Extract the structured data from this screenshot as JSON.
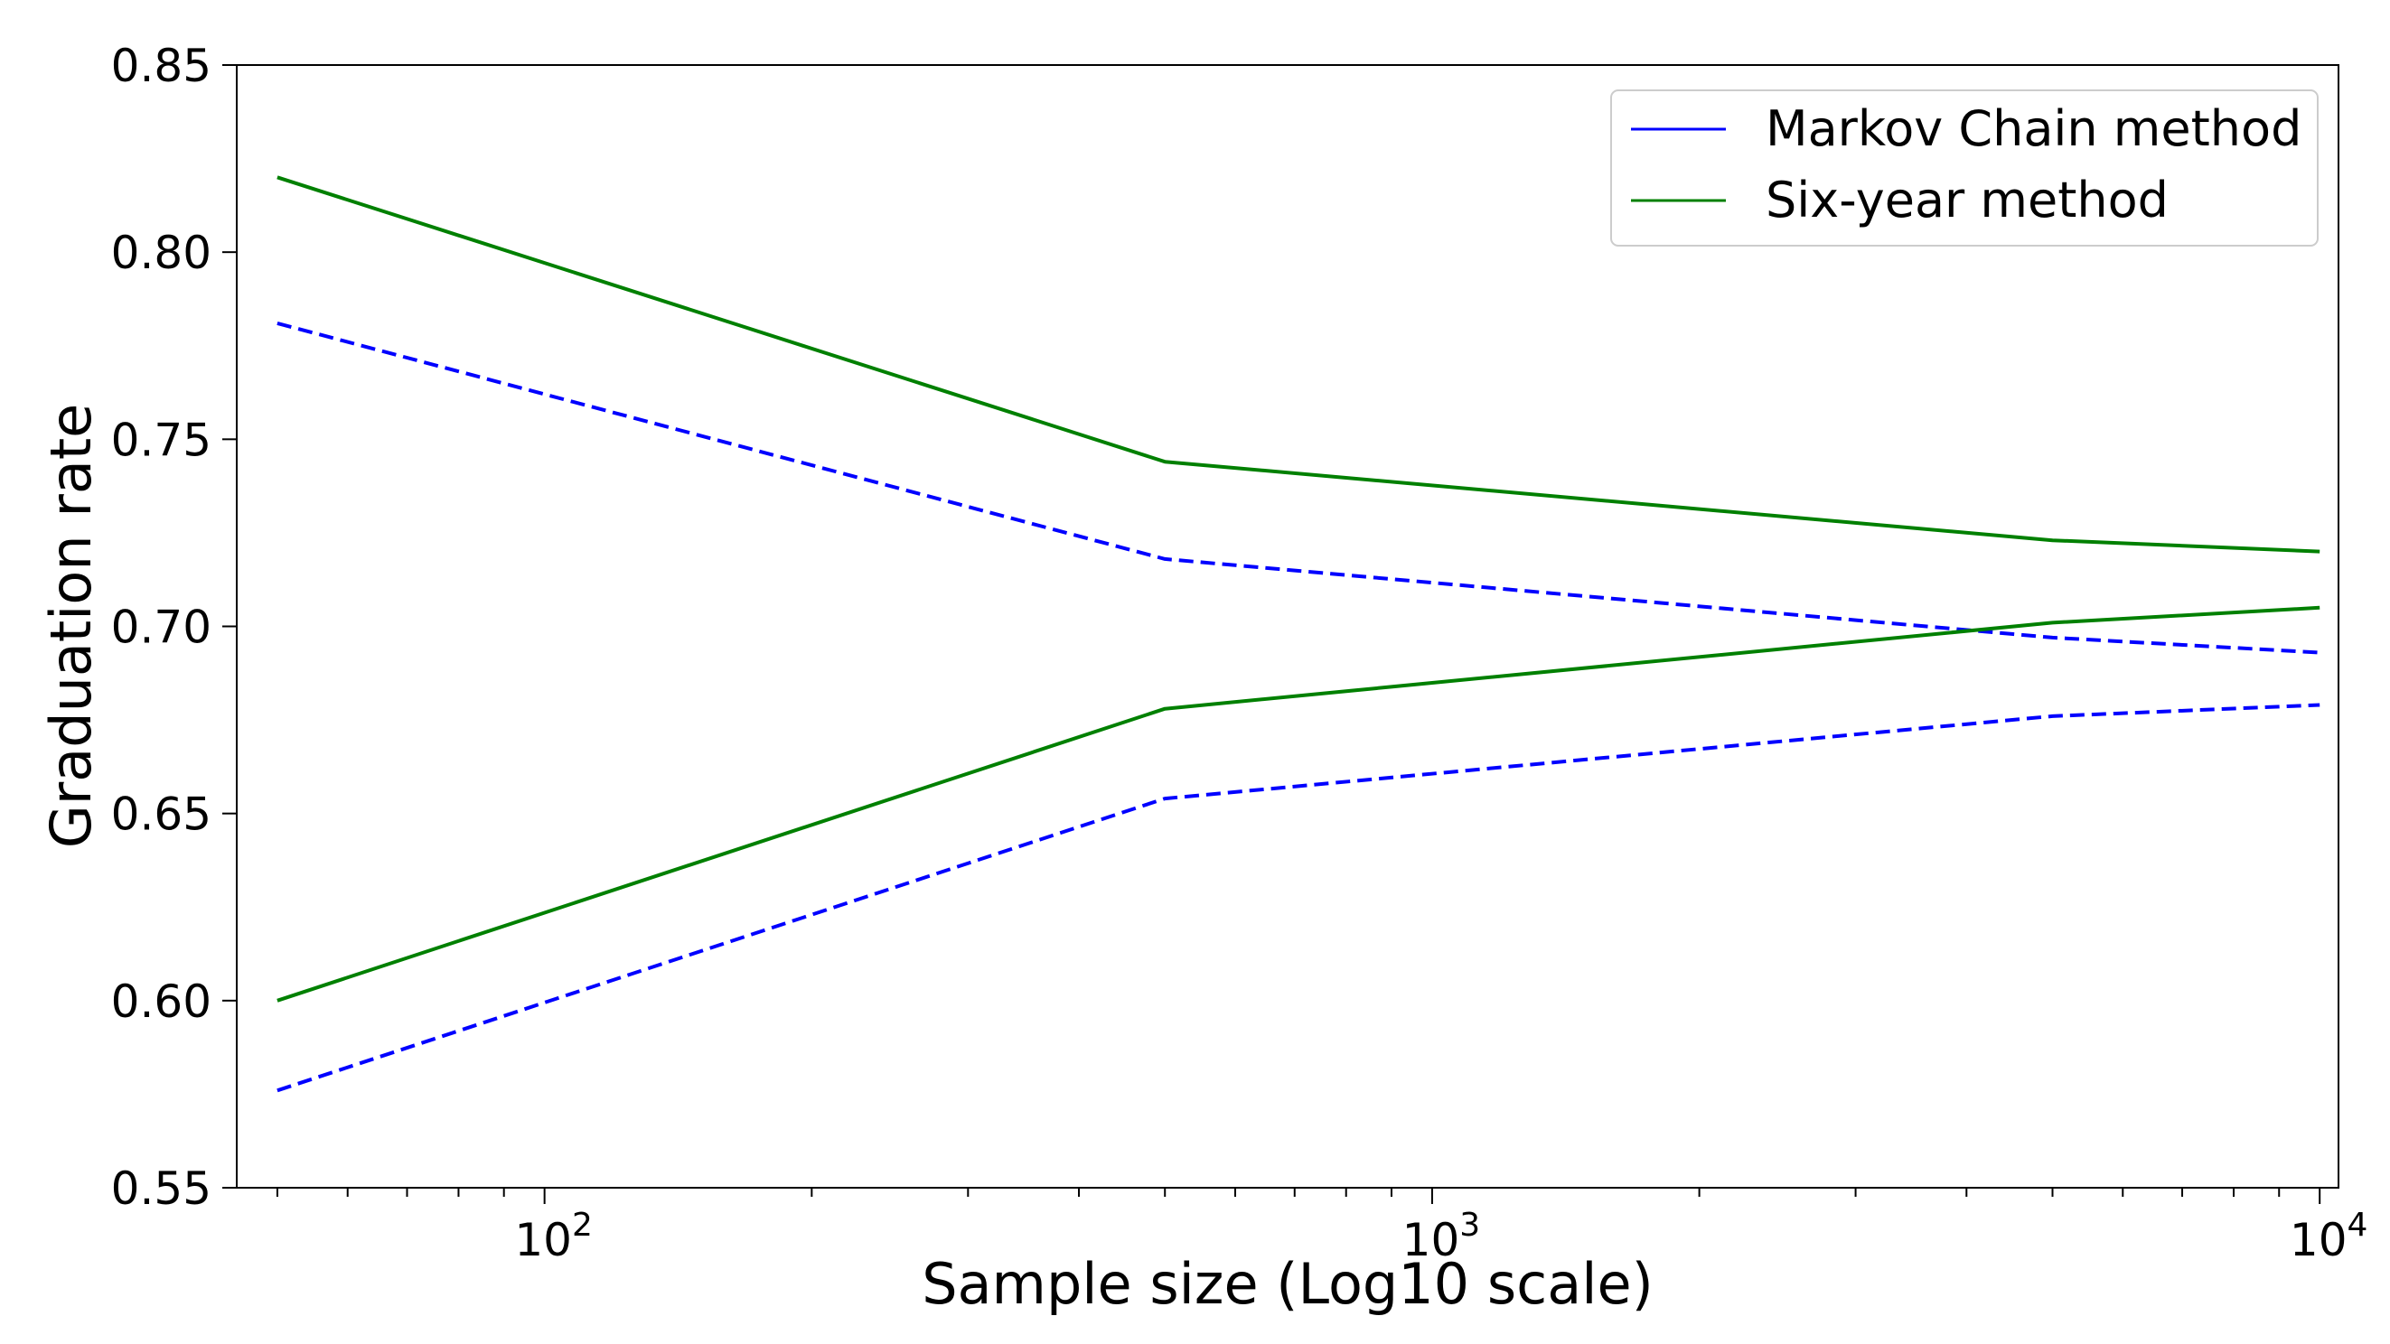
{
  "chart_data": {
    "type": "line",
    "xscale": "log",
    "xlabel": "Sample size (Log10 scale)",
    "ylabel": "Graduation rate",
    "xlim": [
      45,
      10500
    ],
    "ylim": [
      0.55,
      0.85
    ],
    "yticks": [
      "0.55",
      "0.60",
      "0.65",
      "0.70",
      "0.75",
      "0.80",
      "0.85"
    ],
    "xticks": [
      {
        "value": 100,
        "base": "10",
        "exp": "2"
      },
      {
        "value": 1000,
        "base": "10",
        "exp": "3"
      },
      {
        "value": 10000,
        "base": "10",
        "exp": "4"
      }
    ],
    "x": [
      50,
      500,
      5000,
      10000
    ],
    "series": [
      {
        "name": "Markov Chain method upper",
        "legend": "Markov Chain method",
        "color": "#0000ff",
        "style": "dashed",
        "values": [
          0.781,
          0.718,
          0.697,
          0.693
        ]
      },
      {
        "name": "Markov Chain method lower",
        "legend": "",
        "color": "#0000ff",
        "style": "dashed",
        "values": [
          0.576,
          0.654,
          0.676,
          0.679
        ]
      },
      {
        "name": "Six-year method upper",
        "legend": "Six-year method",
        "color": "#008000",
        "style": "solid",
        "values": [
          0.82,
          0.744,
          0.723,
          0.72
        ]
      },
      {
        "name": "Six-year method lower",
        "legend": "",
        "color": "#008000",
        "style": "solid",
        "values": [
          0.6,
          0.678,
          0.701,
          0.705
        ]
      }
    ],
    "legend": {
      "position": "top-right",
      "entries": [
        {
          "label": "Markov Chain method",
          "color": "#0000ff"
        },
        {
          "label": "Six-year method",
          "color": "#008000"
        }
      ]
    }
  }
}
